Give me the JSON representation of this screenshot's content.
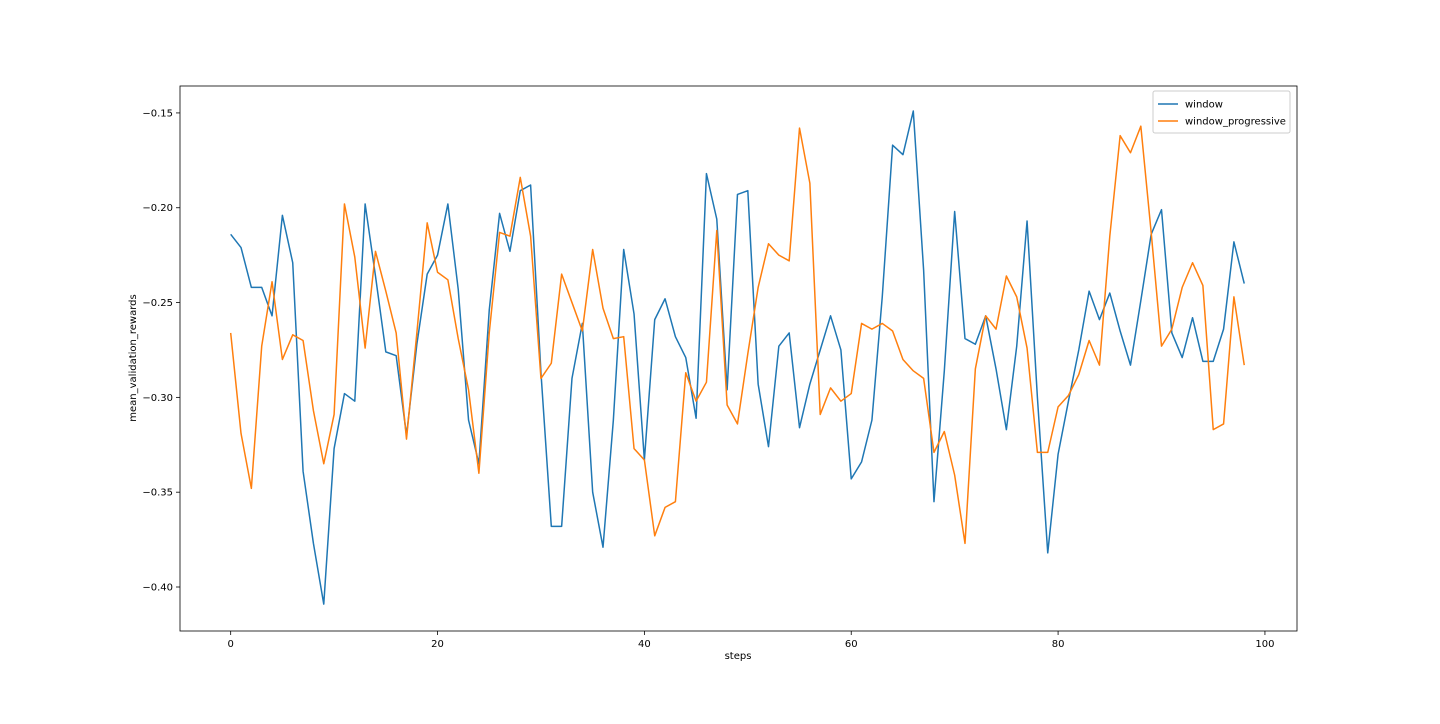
{
  "chart_data": {
    "type": "line",
    "x_label": "steps",
    "y_label": "mean_validation_rewards",
    "x": [
      0,
      1,
      2,
      3,
      4,
      5,
      6,
      7,
      8,
      9,
      10,
      11,
      12,
      13,
      14,
      15,
      16,
      17,
      18,
      19,
      20,
      21,
      22,
      23,
      24,
      25,
      26,
      27,
      28,
      29,
      30,
      31,
      32,
      33,
      34,
      35,
      36,
      37,
      38,
      39,
      40,
      41,
      42,
      43,
      44,
      45,
      46,
      47,
      48,
      49,
      50,
      51,
      52,
      53,
      54,
      55,
      56,
      57,
      58,
      59,
      60,
      61,
      62,
      63,
      64,
      65,
      66,
      67,
      68,
      69,
      70,
      71,
      72,
      73,
      74,
      75,
      76,
      77,
      78,
      79,
      80,
      81,
      82,
      83,
      84,
      85,
      86,
      87,
      88,
      89,
      90,
      91,
      92,
      93,
      94,
      95,
      96,
      97,
      98
    ],
    "series": [
      {
        "name": "window",
        "color": "#1f77b4",
        "values": [
          -0.214,
          -0.221,
          -0.242,
          -0.242,
          -0.257,
          -0.204,
          -0.229,
          -0.339,
          -0.377,
          -0.409,
          -0.327,
          -0.298,
          -0.302,
          -0.198,
          -0.236,
          -0.276,
          -0.278,
          -0.32,
          -0.272,
          -0.235,
          -0.225,
          -0.198,
          -0.243,
          -0.312,
          -0.335,
          -0.254,
          -0.203,
          -0.223,
          -0.191,
          -0.188,
          -0.287,
          -0.368,
          -0.368,
          -0.29,
          -0.261,
          -0.35,
          -0.379,
          -0.312,
          -0.222,
          -0.256,
          -0.333,
          -0.259,
          -0.248,
          -0.268,
          -0.279,
          -0.311,
          -0.182,
          -0.206,
          -0.296,
          -0.193,
          -0.191,
          -0.293,
          -0.326,
          -0.273,
          -0.266,
          -0.316,
          -0.293,
          -0.275,
          -0.257,
          -0.275,
          -0.343,
          -0.334,
          -0.312,
          -0.247,
          -0.167,
          -0.172,
          -0.149,
          -0.233,
          -0.355,
          -0.286,
          -0.202,
          -0.269,
          -0.272,
          -0.257,
          -0.285,
          -0.317,
          -0.273,
          -0.207,
          -0.3,
          -0.382,
          -0.33,
          -0.302,
          -0.275,
          -0.244,
          -0.259,
          -0.245,
          -0.265,
          -0.283,
          -0.249,
          -0.214,
          -0.201,
          -0.266,
          -0.279,
          -0.258,
          -0.281,
          -0.281,
          -0.264,
          -0.218,
          -0.24
        ]
      },
      {
        "name": "window_progressive",
        "color": "#ff7f0e",
        "values": [
          -0.266,
          -0.319,
          -0.348,
          -0.273,
          -0.239,
          -0.28,
          -0.267,
          -0.27,
          -0.307,
          -0.335,
          -0.309,
          -0.198,
          -0.226,
          -0.274,
          -0.223,
          -0.244,
          -0.266,
          -0.322,
          -0.266,
          -0.208,
          -0.234,
          -0.238,
          -0.269,
          -0.296,
          -0.34,
          -0.266,
          -0.213,
          -0.215,
          -0.184,
          -0.215,
          -0.29,
          -0.282,
          -0.235,
          -0.25,
          -0.265,
          -0.222,
          -0.253,
          -0.269,
          -0.268,
          -0.327,
          -0.333,
          -0.373,
          -0.358,
          -0.355,
          -0.287,
          -0.302,
          -0.292,
          -0.212,
          -0.304,
          -0.314,
          -0.277,
          -0.242,
          -0.219,
          -0.225,
          -0.228,
          -0.158,
          -0.187,
          -0.309,
          -0.295,
          -0.302,
          -0.298,
          -0.261,
          -0.264,
          -0.261,
          -0.265,
          -0.28,
          -0.286,
          -0.29,
          -0.329,
          -0.318,
          -0.341,
          -0.377,
          -0.285,
          -0.257,
          -0.264,
          -0.236,
          -0.247,
          -0.274,
          -0.329,
          -0.329,
          -0.305,
          -0.299,
          -0.288,
          -0.27,
          -0.283,
          -0.215,
          -0.162,
          -0.171,
          -0.157,
          -0.213,
          -0.273,
          -0.264,
          -0.242,
          -0.229,
          -0.241,
          -0.317,
          -0.314,
          -0.247,
          -0.283
        ]
      }
    ],
    "xlim": [
      -4.9,
      103.1
    ],
    "ylim": [
      -0.4232,
      -0.1358
    ],
    "xticks": [
      0,
      20,
      40,
      60,
      80,
      100
    ],
    "yticks": [
      {
        "value": -0.4,
        "label": "−0.40"
      },
      {
        "value": -0.35,
        "label": "−0.35"
      },
      {
        "value": -0.3,
        "label": "−0.30"
      },
      {
        "value": -0.25,
        "label": "−0.25"
      },
      {
        "value": -0.2,
        "label": "−0.20"
      },
      {
        "value": -0.15,
        "label": "−0.15"
      }
    ],
    "legend": "upper right"
  }
}
